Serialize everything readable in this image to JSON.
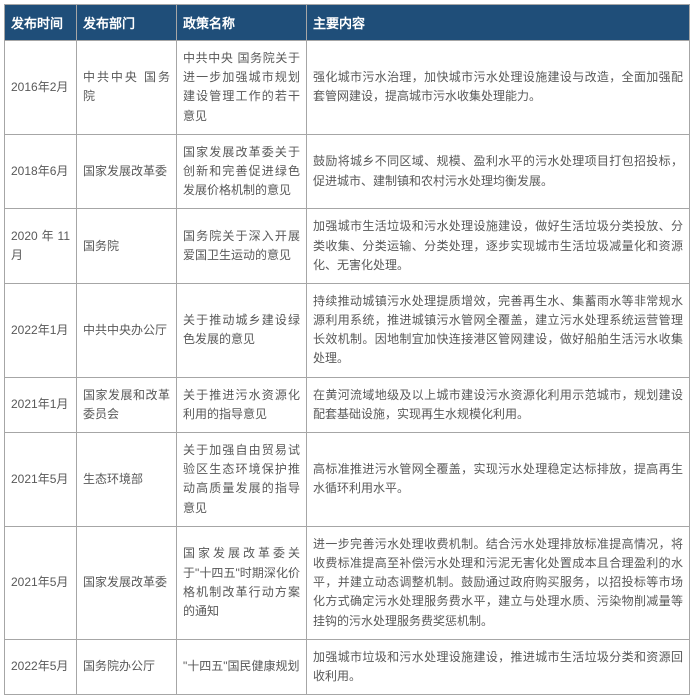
{
  "table": {
    "header_bg": "#1f4e79",
    "header_color": "#ffffff",
    "border_color": "#a6a6a6",
    "cell_color": "#595959",
    "columns": [
      {
        "key": "time",
        "label": "发布时间"
      },
      {
        "key": "dept",
        "label": "发布部门"
      },
      {
        "key": "name",
        "label": "政策名称"
      },
      {
        "key": "content",
        "label": "主要内容"
      }
    ],
    "rows": [
      {
        "time": "2016年2月",
        "dept": "中共中央 国务院",
        "name": "中共中央 国务院关于进一步加强城市规划建设管理工作的若干意见",
        "content": "强化城市污水治理，加快城市污水处理设施建设与改造，全面加强配套管网建设，提高城市污水收集处理能力。"
      },
      {
        "time": "2018年6月",
        "dept": "国家发展改革委",
        "name": "国家发展改革委关于创新和完善促进绿色发展价格机制的意见",
        "content": "鼓励将城乡不同区域、规模、盈利水平的污水处理项目打包招投标，促进城市、建制镇和农村污水处理均衡发展。"
      },
      {
        "time": "2020年11月",
        "dept": "国务院",
        "name": "国务院关于深入开展爱国卫生运动的意见",
        "content": "加强城市生活垃圾和污水处理设施建设，做好生活垃圾分类投放、分类收集、分类运输、分类处理，逐步实现城市生活垃圾减量化和资源化、无害化处理。"
      },
      {
        "time": "2022年1月",
        "dept": "中共中央办公厅",
        "name": "关于推动城乡建设绿色发展的意见",
        "content": "持续推动城镇污水处理提质增效，完善再生水、集蓄雨水等非常规水源利用系统，推进城镇污水管网全覆盖，建立污水处理系统运营管理长效机制。因地制宜加快连接港区管网建设，做好船舶生活污水收集处理。"
      },
      {
        "time": "2021年1月",
        "dept": "国家发展和改革委员会",
        "name": "关于推进污水资源化利用的指导意见",
        "content": "在黄河流域地级及以上城市建设污水资源化利用示范城市，规划建设配套基础设施，实现再生水规模化利用。"
      },
      {
        "time": "2021年5月",
        "dept": "生态环境部",
        "name": "关于加强自由贸易试验区生态环境保护推动高质量发展的指导意见",
        "content": "高标准推进污水管网全覆盖，实现污水处理稳定达标排放，提高再生水循环利用水平。"
      },
      {
        "time": "2021年5月",
        "dept": "国家发展改革委",
        "name": "国家发展改革委关于\"十四五\"时期深化价格机制改革行动方案的通知",
        "content": "进一步完善污水处理收费机制。结合污水处理排放标准提高情况，将收费标准提高至补偿污水处理和污泥无害化处置成本且合理盈利的水平，并建立动态调整机制。鼓励通过政府购买服务，以招投标等市场化方式确定污水处理服务费水平，建立与处理水质、污染物削减量等挂钩的污水处理服务费奖惩机制。"
      },
      {
        "time": "2022年5月",
        "dept": "国务院办公厅",
        "name": "\"十四五\"国民健康规划",
        "content": "加强城市垃圾和污水处理设施建设，推进城市生活垃圾分类和资源回收利用。"
      }
    ]
  }
}
